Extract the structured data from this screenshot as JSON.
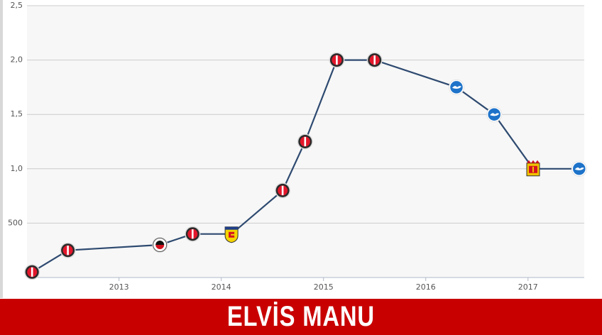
{
  "chart_data": {
    "type": "line",
    "title": "",
    "xlabel": "",
    "ylabel": "",
    "y_ticks": [
      "2,5",
      "2,0",
      "1,5",
      "1,0",
      "500"
    ],
    "y_tick_values": [
      2500000,
      2000000,
      1500000,
      1000000,
      500000
    ],
    "x_ticks": [
      "2013",
      "2014",
      "2015",
      "2016",
      "2017"
    ],
    "x_tick_values": [
      2013,
      2014,
      2015,
      2016,
      2017
    ],
    "xlim": [
      2012.1,
      2017.55
    ],
    "ylim": [
      0,
      2500000
    ],
    "grid": "horizontal",
    "line_color": "#2e4a70",
    "points": [
      {
        "x": 2012.15,
        "y": 50000,
        "club": "feyenoord"
      },
      {
        "x": 2012.5,
        "y": 250000,
        "club": "feyenoord"
      },
      {
        "x": 2013.4,
        "y": 300000,
        "club": "excelsior"
      },
      {
        "x": 2013.72,
        "y": 400000,
        "club": "feyenoord"
      },
      {
        "x": 2014.1,
        "y": 400000,
        "club": "cambuur"
      },
      {
        "x": 2014.6,
        "y": 800000,
        "club": "feyenoord"
      },
      {
        "x": 2014.82,
        "y": 1250000,
        "club": "feyenoord"
      },
      {
        "x": 2015.13,
        "y": 2000000,
        "club": "feyenoord"
      },
      {
        "x": 2015.5,
        "y": 2000000,
        "club": "feyenoord"
      },
      {
        "x": 2016.3,
        "y": 1750000,
        "club": "brighton"
      },
      {
        "x": 2016.67,
        "y": 1500000,
        "club": "brighton"
      },
      {
        "x": 2017.05,
        "y": 1000000,
        "club": "go-ahead-eagles"
      },
      {
        "x": 2017.5,
        "y": 1000000,
        "club": "brighton"
      }
    ]
  },
  "colors": {
    "banner": "#c80000",
    "plot_background": "#f7f7f7",
    "gridline": "#cccccc"
  },
  "banner": {
    "name": "ELVİS MANU"
  }
}
